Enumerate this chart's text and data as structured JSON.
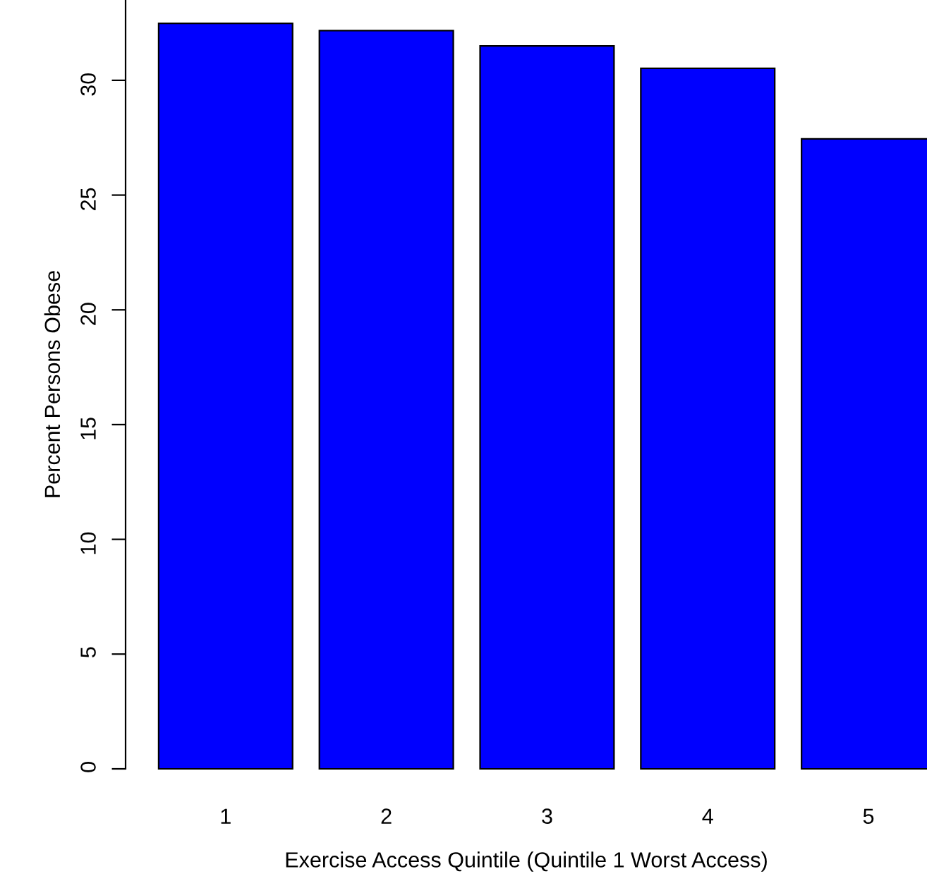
{
  "chart_data": {
    "type": "bar",
    "xlabel": "Exercise Access Quintile (Quintile 1 Worst Access)",
    "ylabel": "Percent Persons Obese",
    "categories": [
      "1",
      "2",
      "3",
      "4",
      "5"
    ],
    "values": [
      32.48,
      32.17,
      31.5,
      30.52,
      27.45
    ],
    "color": "#0000ff",
    "ylim": [
      0,
      33.5
    ],
    "yticks": [
      0,
      5,
      10,
      15,
      20,
      25,
      30
    ],
    "grid": false,
    "legend": false
  }
}
